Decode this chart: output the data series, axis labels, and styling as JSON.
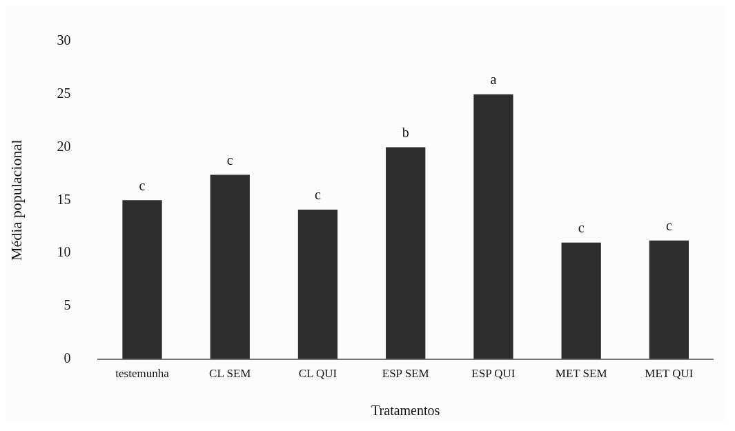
{
  "chart_data": {
    "type": "bar",
    "xlabel": "Tratamentos",
    "ylabel": "Média populacional",
    "categories": [
      "testemunha",
      "CL SEM",
      "CL QUI",
      "ESP SEM",
      "ESP QUI",
      "MET SEM",
      "MET QUI"
    ],
    "values": [
      15,
      17.4,
      14.1,
      20,
      25,
      11,
      11.2
    ],
    "color": "#2d2d2d",
    "ylim": [
      0,
      30
    ],
    "yticks": [
      0,
      5,
      10,
      15,
      20,
      25,
      30
    ],
    "grid": false,
    "legend": false,
    "annotations": [
      {
        "text": "c",
        "x": "testemunha",
        "y": 15
      },
      {
        "text": "c",
        "x": "CL SEM",
        "y": 17.4
      },
      {
        "text": "c",
        "x": "CL QUI",
        "y": 14.1
      },
      {
        "text": "b",
        "x": "ESP SEM",
        "y": 20
      },
      {
        "text": "a",
        "x": "ESP QUI",
        "y": 25
      },
      {
        "text": "c",
        "x": "MET SEM",
        "y": 11
      },
      {
        "text": "c",
        "x": "MET QUI",
        "y": 11.2
      }
    ]
  }
}
